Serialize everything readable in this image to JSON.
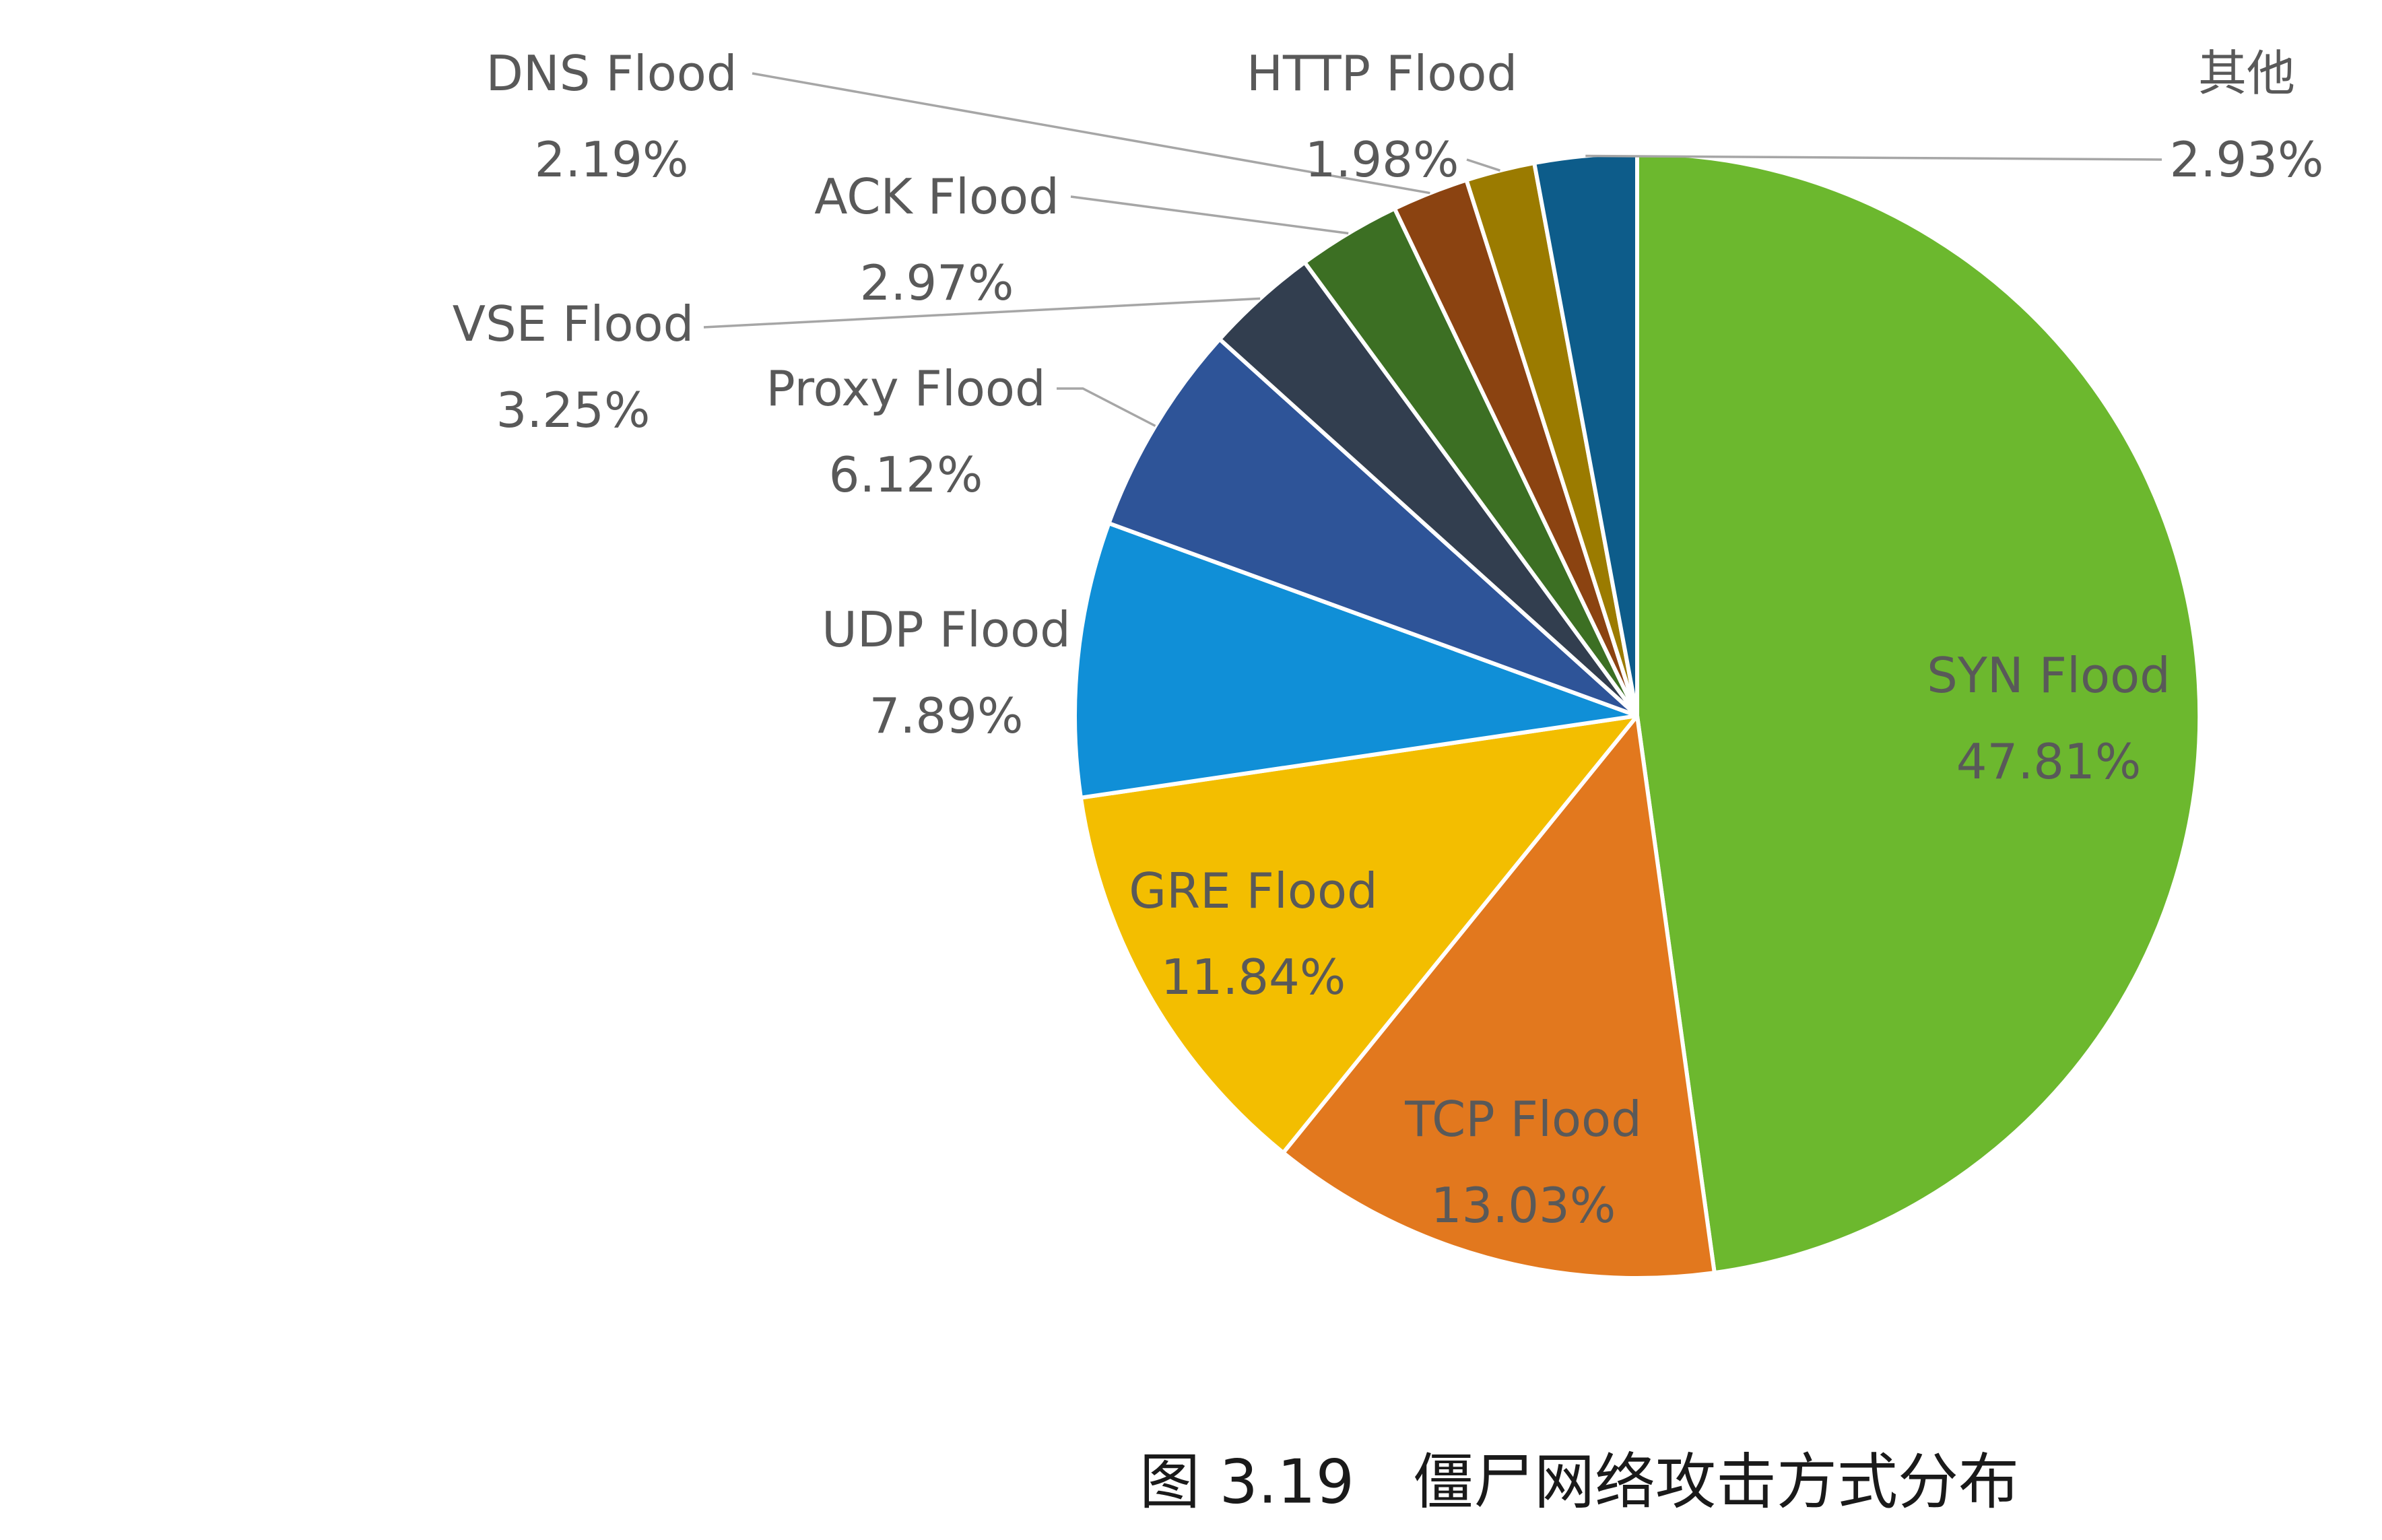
{
  "chart_data": {
    "type": "pie",
    "figure_number": "图 3.19",
    "title": "僵尸网络攻击方式分布",
    "labels": [
      "SYN Flood",
      "TCP Flood",
      "GRE Flood",
      "UDP Flood",
      "Proxy Flood",
      "VSE Flood",
      "ACK Flood",
      "DNS Flood",
      "HTTP Flood",
      "其他"
    ],
    "values": [
      47.81,
      13.03,
      11.84,
      7.89,
      6.12,
      3.25,
      2.97,
      2.19,
      1.98,
      2.93
    ],
    "data_labels": [
      "47.81%",
      "13.03%",
      "11.84%",
      "7.89%",
      "6.12%",
      "3.25%",
      "2.97%",
      "2.19%",
      "1.98%",
      "2.93%"
    ],
    "colors": [
      "#6cb82e",
      "#e2781e",
      "#f3be00",
      "#108fd7",
      "#2e5498",
      "#323e4f",
      "#3c6f23",
      "#8b4311",
      "#9b7b00",
      "#0d5c8a"
    ],
    "label_color": "#595959",
    "leader_color": "#a6a6a6"
  }
}
